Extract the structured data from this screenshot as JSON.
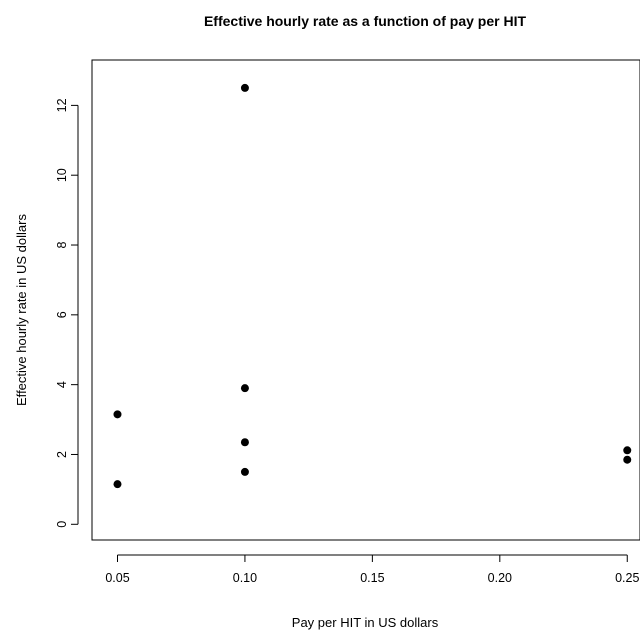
{
  "chart_data": {
    "type": "scatter",
    "title": "Effective hourly rate as a function of pay per HIT",
    "xlabel": "Pay per HIT in US dollars",
    "ylabel": "Effective hourly rate in US dollars",
    "xlim": [
      0.04,
      0.255
    ],
    "ylim": [
      -0.45,
      13.3
    ],
    "x_ticks": [
      0.05,
      0.1,
      0.15,
      0.2,
      0.25
    ],
    "x_tick_labels": [
      "0.05",
      "0.10",
      "0.15",
      "0.20",
      "0.25"
    ],
    "y_ticks": [
      0,
      2,
      4,
      6,
      8,
      10,
      12
    ],
    "y_tick_labels": [
      "0",
      "2",
      "4",
      "6",
      "8",
      "10",
      "12"
    ],
    "grid": false,
    "legend": "none",
    "marker_color": "#000000",
    "points": [
      {
        "x": 0.05,
        "y": 3.15
      },
      {
        "x": 0.05,
        "y": 1.15
      },
      {
        "x": 0.1,
        "y": 12.5
      },
      {
        "x": 0.1,
        "y": 3.9
      },
      {
        "x": 0.1,
        "y": 2.35
      },
      {
        "x": 0.1,
        "y": 1.5
      },
      {
        "x": 0.25,
        "y": 2.12
      },
      {
        "x": 0.25,
        "y": 1.85
      }
    ]
  }
}
